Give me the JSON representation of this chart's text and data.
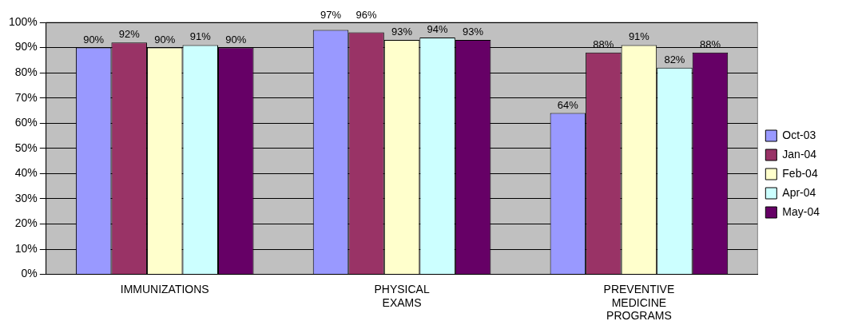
{
  "chart_data": {
    "type": "bar",
    "categories": [
      "IMMUNIZATIONS",
      "PHYSICAL EXAMS",
      "PREVENTIVE MEDICINE PROGRAMS"
    ],
    "series": [
      {
        "name": "Oct-03",
        "color": "#9999ff",
        "values": [
          90,
          97,
          64
        ],
        "value_labels": [
          "90%",
          "97%",
          "64%"
        ]
      },
      {
        "name": "Jan-04",
        "color": "#993366",
        "values": [
          92,
          96,
          88
        ],
        "value_labels": [
          "92%",
          "96%",
          "88%"
        ]
      },
      {
        "name": "Feb-04",
        "color": "#ffffcc",
        "values": [
          90,
          93,
          91
        ],
        "value_labels": [
          "90%",
          "93%",
          "91%"
        ]
      },
      {
        "name": "Apr-04",
        "color": "#ccffff",
        "values": [
          91,
          94,
          82
        ],
        "value_labels": [
          "91%",
          "94%",
          "82%"
        ]
      },
      {
        "name": "May-04",
        "color": "#660066",
        "values": [
          90,
          93,
          88
        ],
        "value_labels": [
          "90%",
          "93%",
          "88%"
        ]
      }
    ],
    "ylim": [
      0,
      100
    ],
    "yticks": [
      {
        "value": 0,
        "label": "0%"
      },
      {
        "value": 10,
        "label": "10%"
      },
      {
        "value": 20,
        "label": "20%"
      },
      {
        "value": 30,
        "label": "30%"
      },
      {
        "value": 40,
        "label": "40%"
      },
      {
        "value": 50,
        "label": "50%"
      },
      {
        "value": 60,
        "label": "60%"
      },
      {
        "value": 70,
        "label": "70%"
      },
      {
        "value": 80,
        "label": "80%"
      },
      {
        "value": 90,
        "label": "90%"
      },
      {
        "value": 100,
        "label": "100%"
      }
    ],
    "grid": "y",
    "legend": "right"
  }
}
